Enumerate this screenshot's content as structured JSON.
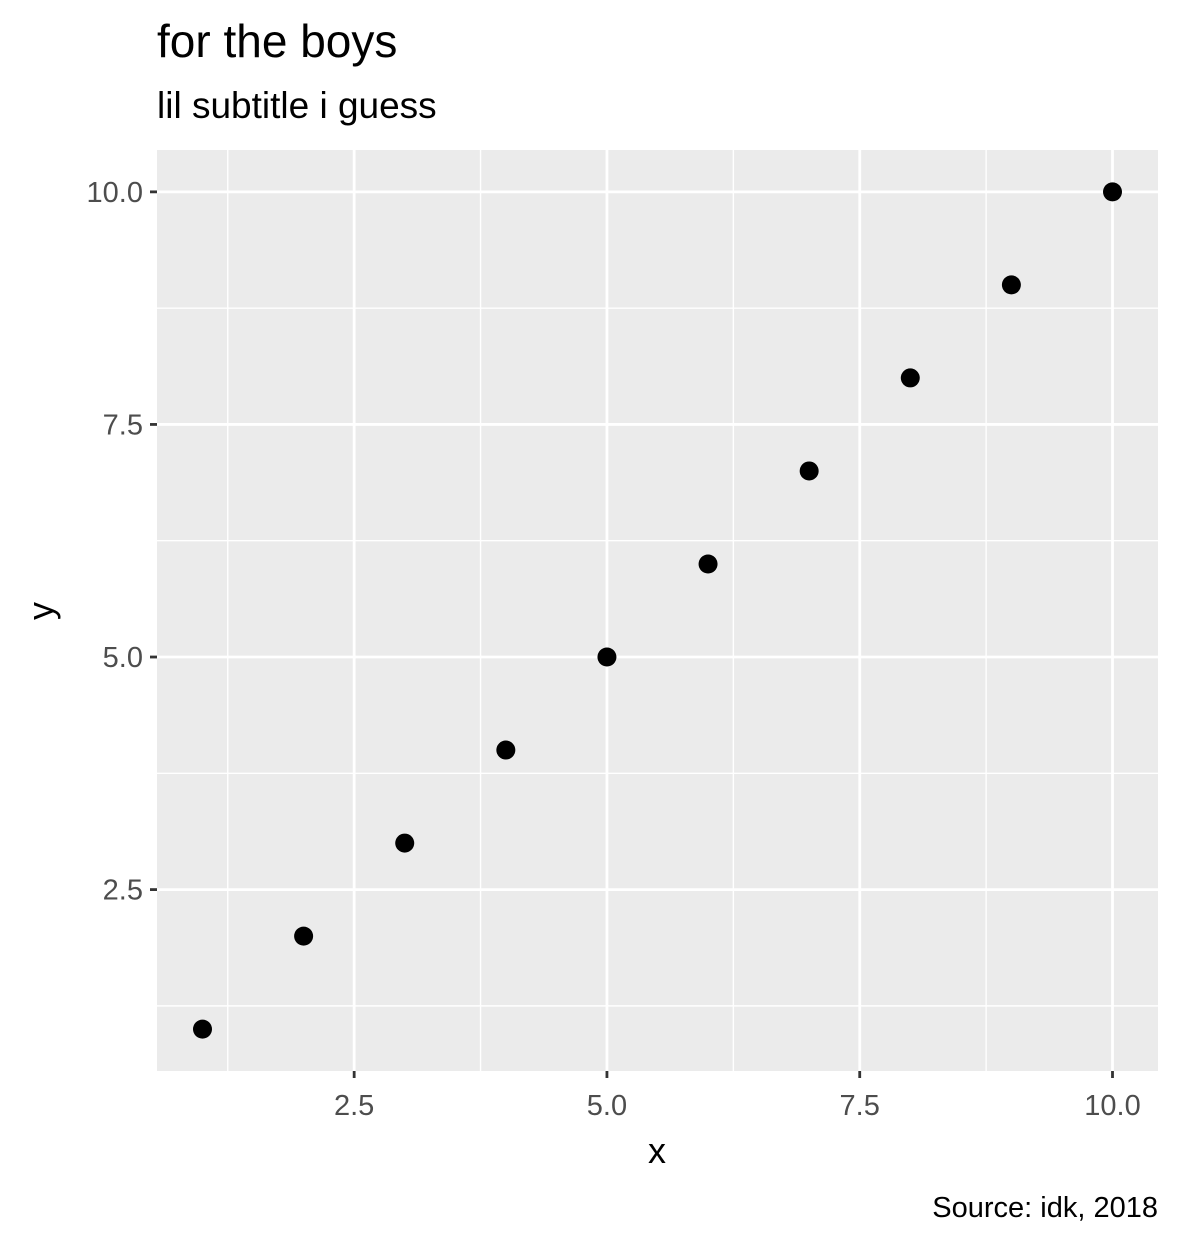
{
  "chart_data": {
    "type": "scatter",
    "title": "for the boys",
    "subtitle": "lil subtitle i guess",
    "caption": "Source: idk, 2018",
    "xlabel": "x",
    "ylabel": "y",
    "xlim": [
      0.55,
      10.45
    ],
    "ylim": [
      0.55,
      10.45
    ],
    "x_ticks": [
      2.5,
      5.0,
      7.5,
      10.0
    ],
    "x_tick_labels": [
      "2.5",
      "5.0",
      "7.5",
      "10.0"
    ],
    "y_ticks": [
      2.5,
      5.0,
      7.5,
      10.0
    ],
    "y_tick_labels": [
      "2.5",
      "5.0",
      "7.5",
      "10.0"
    ],
    "grid": true,
    "colors": {
      "panel_background": "#ebebeb",
      "grid_major": "#ffffff",
      "point": "#000000"
    },
    "points": [
      {
        "x": 1,
        "y": 1
      },
      {
        "x": 2,
        "y": 2
      },
      {
        "x": 3,
        "y": 3
      },
      {
        "x": 4,
        "y": 4
      },
      {
        "x": 5,
        "y": 5
      },
      {
        "x": 6,
        "y": 6
      },
      {
        "x": 7,
        "y": 7
      },
      {
        "x": 8,
        "y": 8
      },
      {
        "x": 9,
        "y": 9
      },
      {
        "x": 10,
        "y": 10
      }
    ]
  }
}
